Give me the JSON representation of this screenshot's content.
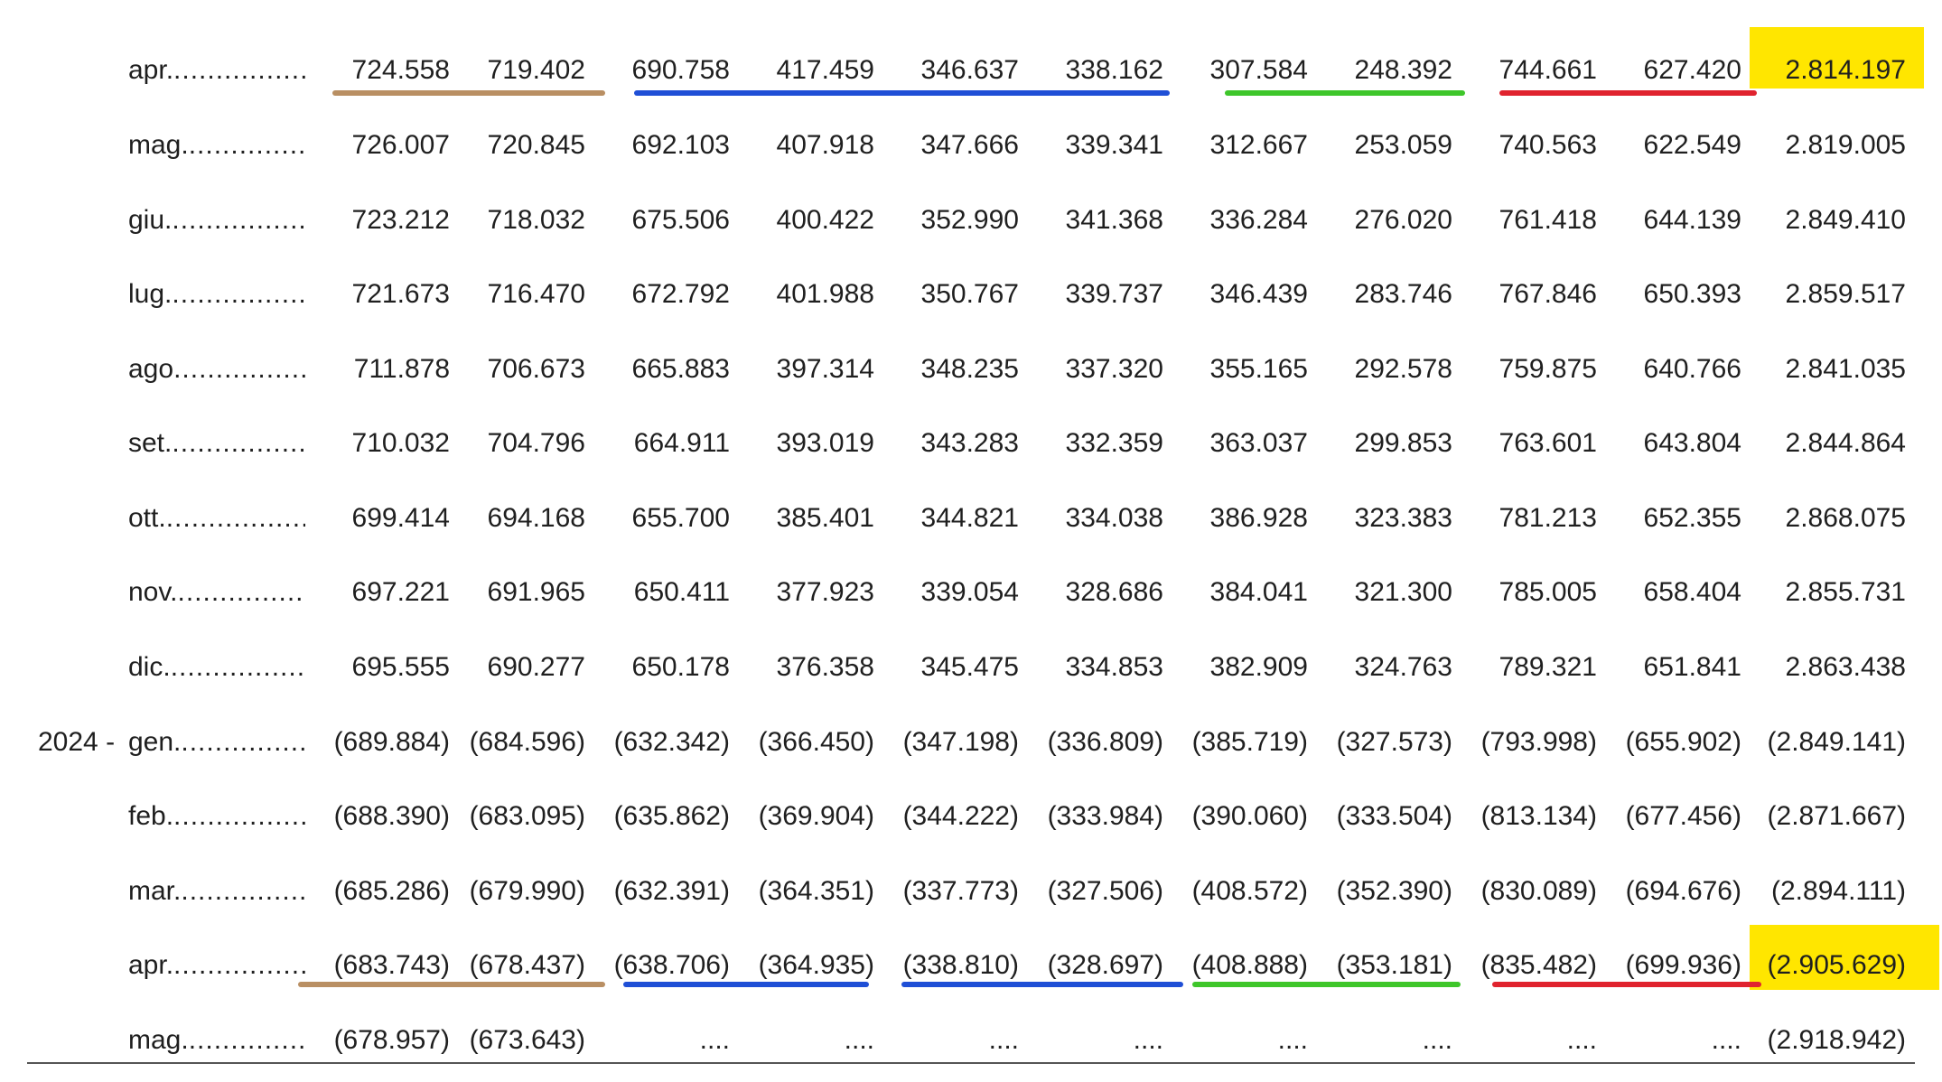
{
  "colors": {
    "brown": "#b98f63",
    "blue": "#1f4fd6",
    "green": "#3ec62a",
    "red": "#e0232e",
    "highlight": "#ffe600"
  },
  "year_prefix": "2024 -",
  "rows": [
    {
      "label": "apr.",
      "values": [
        "724.558",
        "719.402",
        "690.758",
        "417.459",
        "346.637",
        "338.162",
        "307.584",
        "248.392",
        "744.661",
        "627.420",
        "2.814.197"
      ]
    },
    {
      "label": "mag.",
      "values": [
        "726.007",
        "720.845",
        "692.103",
        "407.918",
        "347.666",
        "339.341",
        "312.667",
        "253.059",
        "740.563",
        "622.549",
        "2.819.005"
      ]
    },
    {
      "label": "giu.",
      "values": [
        "723.212",
        "718.032",
        "675.506",
        "400.422",
        "352.990",
        "341.368",
        "336.284",
        "276.020",
        "761.418",
        "644.139",
        "2.849.410"
      ]
    },
    {
      "label": "lug.",
      "values": [
        "721.673",
        "716.470",
        "672.792",
        "401.988",
        "350.767",
        "339.737",
        "346.439",
        "283.746",
        "767.846",
        "650.393",
        "2.859.517"
      ]
    },
    {
      "label": "ago",
      "values": [
        "711.878",
        "706.673",
        "665.883",
        "397.314",
        "348.235",
        "337.320",
        "355.165",
        "292.578",
        "759.875",
        "640.766",
        "2.841.035"
      ]
    },
    {
      "label": "set.",
      "values": [
        "710.032",
        "704.796",
        "664.911",
        "393.019",
        "343.283",
        "332.359",
        "363.037",
        "299.853",
        "763.601",
        "643.804",
        "2.844.864"
      ]
    },
    {
      "label": "ott.",
      "values": [
        "699.414",
        "694.168",
        "655.700",
        "385.401",
        "344.821",
        "334.038",
        "386.928",
        "323.383",
        "781.213",
        "652.355",
        "2.868.075"
      ]
    },
    {
      "label": "nov.",
      "values": [
        "697.221",
        "691.965",
        "650.411",
        "377.923",
        "339.054",
        "328.686",
        "384.041",
        "321.300",
        "785.005",
        "658.404",
        "2.855.731"
      ]
    },
    {
      "label": "dic.",
      "values": [
        "695.555",
        "690.277",
        "650.178",
        "376.358",
        "345.475",
        "334.853",
        "382.909",
        "324.763",
        "789.321",
        "651.841",
        "2.863.438"
      ]
    },
    {
      "label": "gen.",
      "values": [
        "(689.884)",
        "(684.596)",
        "(632.342)",
        "(366.450)",
        "(347.198)",
        "(336.809)",
        "(385.719)",
        "(327.573)",
        "(793.998)",
        "(655.902)",
        "(2.849.141)"
      ]
    },
    {
      "label": "feb.",
      "values": [
        "(688.390)",
        "(683.095)",
        "(635.862)",
        "(369.904)",
        "(344.222)",
        "(333.984)",
        "(390.060)",
        "(333.504)",
        "(813.134)",
        "(677.456)",
        "(2.871.667)"
      ]
    },
    {
      "label": "mar.",
      "values": [
        "(685.286)",
        "(679.990)",
        "(632.391)",
        "(364.351)",
        "(337.773)",
        "(327.506)",
        "(408.572)",
        "(352.390)",
        "(830.089)",
        "(694.676)",
        "(2.894.111)"
      ]
    },
    {
      "label": "apr.",
      "values": [
        "(683.743)",
        "(678.437)",
        "(638.706)",
        "(364.935)",
        "(338.810)",
        "(328.697)",
        "(408.888)",
        "(353.181)",
        "(835.482)",
        "(699.936)",
        "(2.905.629)"
      ]
    },
    {
      "label": "mag.",
      "values": [
        "(678.957)",
        "(673.643)",
        "....",
        "....",
        "....",
        "....",
        "....",
        "....",
        "....",
        "....",
        "(2.918.942)"
      ]
    }
  ]
}
